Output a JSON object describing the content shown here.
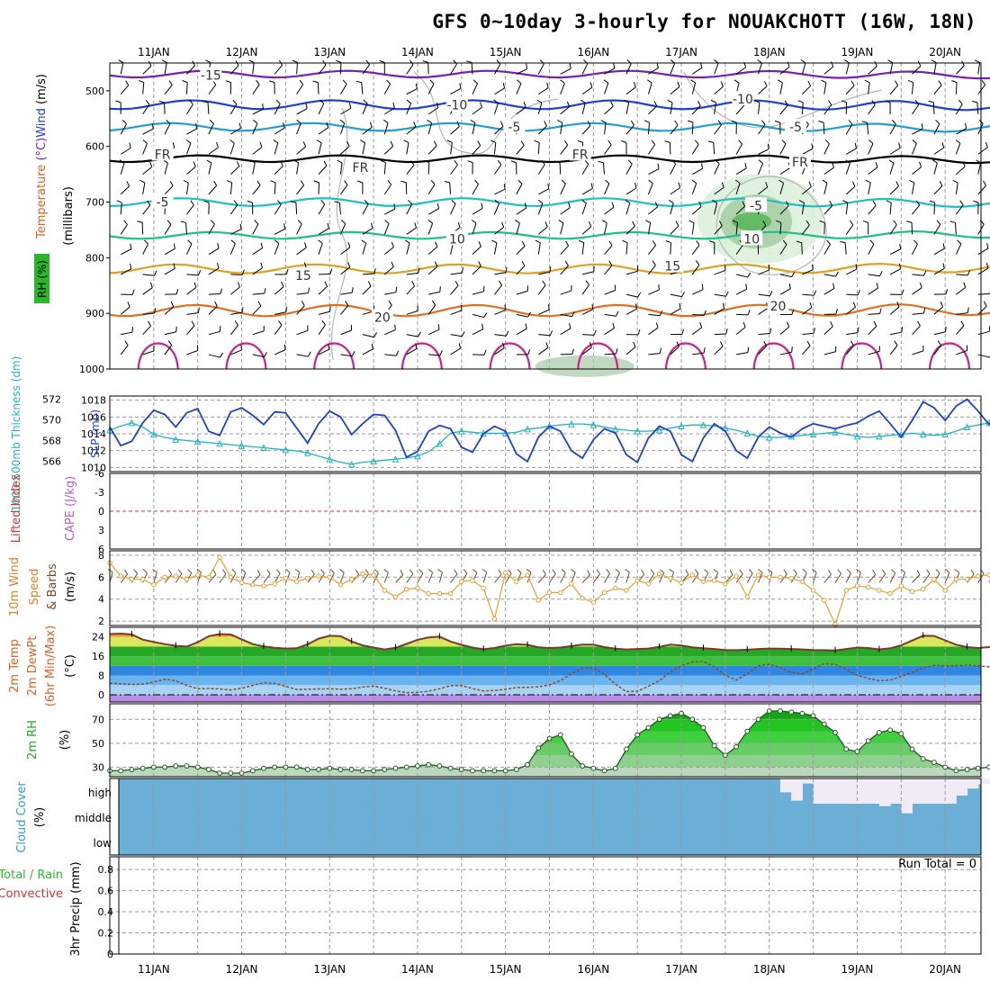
{
  "title": "GFS 0~10day 3-hourly for NOUAKCHOTT (16W, 18N)",
  "colors": {
    "frame": "#000000",
    "grid": "#9a9a9a",
    "rh_shade": "#1f7a1f",
    "slp": "#1f3fd6",
    "thickness": "#1fb5bf",
    "lifted_zero": "#e03030",
    "wind_speed": "#e8a030",
    "barb": "#7a4a2a",
    "temp_line": "#7a3a2a",
    "rh2m_fill": "#22c422",
    "cloud_bg": "#6baed6",
    "cloud_fill": "#f0ecf6"
  },
  "chart_data": [
    {
      "panel": "upper-air",
      "type": "contour",
      "ylabel_parts": [
        "Temperature",
        "(°C)",
        "Wind",
        "(m/s)"
      ],
      "ylabel2": "(millibars)",
      "rh_label": "RH (%)",
      "x_ticks": [
        "11JAN",
        "12JAN",
        "13JAN",
        "14JAN",
        "15JAN",
        "16JAN",
        "17JAN",
        "18JAN",
        "19JAN",
        "20JAN"
      ],
      "y_ticks": [
        "500",
        "600",
        "700",
        "800",
        "900",
        "1000"
      ],
      "ylim": [
        450,
        1000
      ],
      "contour_labels": [
        {
          "text": "-15",
          "day": 1.15,
          "p": 472
        },
        {
          "text": "-10",
          "day": 3.95,
          "p": 525
        },
        {
          "text": "-10",
          "day": 7.2,
          "p": 515
        },
        {
          "text": "-5",
          "day": 4.6,
          "p": 565
        },
        {
          "text": "-5",
          "day": 7.8,
          "p": 565
        },
        {
          "text": "FR",
          "day": 0.6,
          "p": 614
        },
        {
          "text": "FR",
          "day": 2.85,
          "p": 638
        },
        {
          "text": "FR",
          "day": 5.35,
          "p": 614
        },
        {
          "text": "FR",
          "day": 7.85,
          "p": 628
        },
        {
          "text": "-5",
          "day": 0.6,
          "p": 700
        },
        {
          "text": "-5",
          "day": 7.35,
          "p": 706
        },
        {
          "text": "10",
          "day": 3.95,
          "p": 766
        },
        {
          "text": "10",
          "day": 7.3,
          "p": 766
        },
        {
          "text": "15",
          "day": 2.2,
          "p": 832
        },
        {
          "text": "15",
          "day": 6.4,
          "p": 815
        },
        {
          "text": "20",
          "day": 3.1,
          "p": 907
        },
        {
          "text": "20",
          "day": 7.6,
          "p": 887
        }
      ]
    },
    {
      "panel": "slp-thickness",
      "type": "line",
      "ylabel_left": "1000-500mb Thickness (dm)",
      "ylabel_right": "SLP (mb)",
      "thickness_ticks": [
        "566",
        "568",
        "570",
        "572"
      ],
      "slp_ticks": [
        "1010",
        "1012",
        "1014",
        "1016",
        "1018"
      ],
      "slp_ylim": [
        1009.5,
        1018.5
      ],
      "thickness_ylim": [
        565,
        572.3
      ],
      "series": [
        {
          "values": [
            1014.8,
            1012.6,
            1013.1,
            1015.3,
            1016.8,
            1016.3,
            1014.8,
            1016.5,
            1017.0,
            1014.3,
            1013.8,
            1016.6,
            1017.1,
            1016.2,
            1015.1,
            1016.6,
            1016.5,
            1014.7,
            1012.9,
            1015.2,
            1016.7,
            1016.0,
            1013.9,
            1015.2,
            1016.3,
            1016.2,
            1014.4,
            1011.2,
            1011.9,
            1014.3,
            1015.0,
            1014.6,
            1012.4,
            1011.8,
            1014.0,
            1014.9,
            1014.3,
            1011.6,
            1010.7,
            1013.6,
            1014.9,
            1014.3,
            1012.0,
            1011.1,
            1013.3,
            1014.6,
            1014.1,
            1011.5,
            1010.6,
            1013.5,
            1014.9,
            1014.3,
            1011.5,
            1010.7,
            1013.5,
            1015.2,
            1014.3,
            1012.0,
            1011.1,
            1013.6,
            1014.8,
            1014.1,
            1013.6,
            1014.6,
            1015.2,
            1014.9,
            1014.6,
            1015.0,
            1015.3,
            1016.1,
            1016.7,
            1015.2,
            1013.6,
            1015.6,
            1017.8,
            1017.1,
            1015.6,
            1017.3,
            1018.1,
            1016.7,
            1015.1,
            1016.3,
            1017.4,
            1017.3,
            1016.0,
            1016.4,
            1017.5,
            1016.8,
            1015.2,
            1017.0,
            1015.9,
            1012.8,
            1012.3,
            1014.3,
            1014.5,
            1013.4,
            1012.8
          ]
        },
        {
          "values": [
            569.0,
            569.4,
            569.7,
            569.3,
            568.6,
            568.3,
            568.1,
            568.0,
            567.9,
            567.8,
            567.7,
            567.6,
            567.5,
            567.4,
            567.3,
            567.2,
            567.1,
            567.0,
            566.8,
            566.5,
            566.2,
            565.9,
            565.7,
            565.9,
            566.0,
            566.1,
            566.2,
            566.3,
            566.5,
            566.9,
            567.7,
            568.7,
            568.9,
            568.8,
            568.7,
            568.7,
            568.7,
            568.8,
            569.1,
            569.2,
            569.4,
            569.5,
            569.6,
            569.6,
            569.5,
            569.3,
            569.1,
            569.0,
            568.9,
            568.9,
            569.0,
            569.2,
            569.4,
            569.5,
            569.5,
            569.4,
            569.2,
            569.0,
            568.7,
            568.4,
            568.3,
            568.3,
            568.4,
            568.5,
            568.6,
            568.7,
            568.8,
            568.6,
            568.4,
            568.3,
            568.4,
            568.5,
            568.6,
            568.7,
            568.6,
            568.5,
            568.6,
            568.9,
            569.3,
            569.5,
            569.7,
            570.0,
            570.2,
            570.3,
            570.4,
            570.3,
            570.2,
            570.4,
            570.8,
            571.2,
            571.7,
            571.9,
            571.8,
            571.6,
            571.4,
            571.0,
            570.6
          ]
        }
      ]
    },
    {
      "panel": "stability",
      "type": "line",
      "ylabel_left": "Lifted Index",
      "ylabel_right": "CAPE (J/kg)",
      "y_ticks": [
        "-6",
        "-3",
        "0",
        "3",
        "6"
      ],
      "ylim": [
        -6,
        6
      ]
    },
    {
      "panel": "surface-wind",
      "type": "line",
      "ylabel_left": "10m Wind",
      "ylabel_mid": "Speed",
      "ylabel_right": "& Barbs",
      "unit": "(m/s)",
      "y_ticks": [
        "2",
        "4",
        "6",
        "8"
      ],
      "ylim": [
        1.6,
        8.4
      ],
      "series": [
        {
          "values": [
            7.3,
            6.1,
            5.8,
            5.8,
            5.3,
            6.0,
            6.1,
            5.8,
            6.2,
            6.0,
            7.8,
            6.0,
            5.5,
            5.3,
            5.2,
            5.4,
            5.9,
            5.6,
            5.9,
            6.1,
            6.0,
            5.3,
            5.8,
            6.3,
            6.2,
            4.8,
            4.2,
            4.9,
            5.0,
            4.5,
            4.5,
            4.5,
            5.6,
            5.7,
            5.0,
            2.2,
            6.4,
            5.6,
            6.2,
            3.9,
            4.6,
            4.6,
            5.4,
            4.1,
            3.7,
            4.6,
            5.0,
            4.8,
            5.7,
            5.4,
            6.3,
            5.9,
            5.5,
            6.2,
            5.6,
            5.7,
            5.4,
            6.1,
            4.2,
            6.2,
            6.0,
            6.0,
            5.9,
            5.6,
            4.8,
            3.9,
            1.7,
            4.8,
            5.2,
            5.1,
            4.8,
            4.5,
            5.2,
            4.7,
            4.9,
            5.8,
            4.8,
            5.8,
            5.8,
            6.1,
            6.2,
            6.2,
            6.8,
            7.4,
            7.1,
            6.2,
            5.6,
            5.8,
            5.9,
            6.2,
            6.1,
            6.0,
            6.4,
            4.0,
            3.8,
            4.6,
            4.2
          ]
        }
      ]
    },
    {
      "panel": "temperature",
      "type": "area",
      "ylabel_lines": [
        "2m Temp",
        "2m DewPt",
        "(6hr Min/Max)"
      ],
      "unit": "(°C)",
      "y_ticks": [
        "0",
        "8",
        "16",
        "24"
      ],
      "ylim": [
        -3,
        28
      ],
      "series": [
        {
          "name": "2m Temp",
          "values": [
            25.2,
            25.4,
            25.0,
            22.9,
            21.9,
            21.0,
            20.3,
            20.0,
            21.8,
            24.3,
            25.2,
            25.0,
            23.0,
            21.0,
            20.1,
            19.5,
            19.2,
            19.3,
            20.9,
            23.3,
            24.5,
            24.3,
            22.1,
            20.5,
            19.6,
            18.8,
            19.5,
            21.1,
            22.8,
            23.8,
            24.1,
            22.1,
            20.7,
            19.6,
            18.9,
            19.4,
            20.4,
            21.0,
            20.7,
            19.7,
            19.4,
            19.6,
            20.2,
            20.8,
            20.8,
            19.8,
            19.1,
            18.8,
            19.0,
            19.2,
            19.9,
            20.8,
            20.4,
            19.7,
            19.3,
            19.0,
            18.6,
            18.5,
            18.7,
            19.0,
            19.2,
            19.1,
            19.0,
            18.8,
            18.6,
            18.5,
            18.4,
            19.0,
            19.6,
            19.4,
            18.8,
            19.3,
            20.5,
            22.5,
            24.5,
            24.4,
            22.6,
            20.8,
            19.8,
            19.4,
            19.8,
            21.6,
            24.1,
            24.5,
            23.0,
            21.2,
            20.2,
            19.8,
            19.7,
            20.5,
            22.8,
            24.3,
            24.0,
            22.1,
            20.2,
            19.3,
            18.6
          ]
        },
        {
          "name": "2m DewPt",
          "values": [
            4.8,
            4.6,
            4.3,
            4.4,
            5.3,
            6.5,
            5.8,
            3.9,
            2.5,
            2.6,
            2.4,
            2.0,
            2.7,
            3.9,
            5.0,
            4.7,
            3.5,
            2.2,
            2.3,
            2.4,
            2.5,
            2.3,
            2.5,
            3.2,
            3.6,
            2.7,
            1.6,
            0.9,
            1.0,
            1.5,
            2.5,
            3.8,
            3.8,
            2.6,
            1.6,
            1.7,
            2.3,
            3.0,
            3.1,
            3.3,
            4.1,
            5.9,
            8.7,
            11.0,
            11.3,
            8.5,
            4.4,
            1.3,
            1.5,
            3.5,
            5.8,
            9.5,
            12.0,
            13.6,
            13.8,
            11.6,
            8.0,
            6.1,
            8.7,
            12.0,
            12.6,
            11.4,
            9.3,
            8.6,
            10.9,
            12.9,
            12.6,
            10.6,
            8.1,
            6.8,
            5.8,
            6.1,
            7.6,
            9.3,
            11.2,
            12.2,
            12.0,
            12.1,
            12.3,
            12.0,
            11.6,
            11.6,
            11.7,
            11.6,
            11.2,
            11.0,
            10.4,
            9.2,
            8.3,
            7.3,
            6.7,
            5.4,
            3.9,
            3.1,
            2.7,
            2.6,
            2.6
          ]
        }
      ]
    },
    {
      "panel": "relative-humidity",
      "type": "area",
      "ylabel": "2m RH",
      "unit": "(%)",
      "y_ticks": [
        "30",
        "50",
        "70"
      ],
      "ylim": [
        22,
        83
      ],
      "series": [
        {
          "name": "2m RH",
          "values": [
            27,
            27,
            28,
            29,
            30,
            30,
            31,
            31,
            30,
            28,
            25,
            25,
            25,
            27,
            29,
            30,
            30,
            30,
            28,
            28,
            29,
            28,
            28,
            27,
            27,
            28,
            29,
            30,
            31,
            32,
            31,
            29,
            28,
            27,
            27,
            27,
            27,
            28,
            32,
            46,
            54,
            57,
            41,
            31,
            29,
            27,
            29,
            45,
            57,
            63,
            70,
            73,
            75,
            70,
            63,
            48,
            40,
            47,
            60,
            70,
            77,
            77,
            76,
            75,
            73,
            66,
            59,
            45,
            43,
            52,
            59,
            61,
            58,
            45,
            37,
            34,
            30,
            27,
            28,
            29,
            30,
            31,
            30,
            30,
            28,
            27,
            28,
            30,
            31,
            30,
            27,
            26,
            27,
            28,
            30,
            30,
            30
          ]
        }
      ]
    },
    {
      "panel": "cloud-cover",
      "type": "heatmap",
      "ylabel": "Cloud Cover",
      "unit": "(%)",
      "row_labels": [
        "high",
        "middle",
        "low"
      ],
      "high_cover": [
        0,
        0,
        0,
        0,
        0,
        0,
        0,
        0,
        0,
        0,
        0,
        0,
        0,
        0,
        0,
        0,
        0,
        0,
        0,
        0,
        0,
        0,
        0,
        0,
        0,
        0,
        0,
        0,
        0,
        0,
        0,
        0,
        0,
        0,
        0,
        0,
        0,
        0,
        0,
        0,
        0,
        0,
        0,
        0,
        0,
        0,
        0,
        0,
        0,
        0,
        0,
        0,
        0,
        0,
        0,
        0,
        0,
        0,
        0,
        0,
        0,
        0.55,
        0.88,
        0.2,
        1,
        1,
        1,
        1,
        1,
        1,
        1,
        1,
        1,
        1,
        1,
        1,
        1,
        0.68,
        0.4,
        0.23,
        0.12,
        0.1,
        0.08,
        0,
        0,
        0,
        0,
        0,
        0,
        0,
        0,
        0,
        0,
        0,
        0,
        0,
        0
      ],
      "middle_cover": [
        0,
        0,
        0,
        0,
        0,
        0,
        0,
        0,
        0,
        0,
        0,
        0,
        0,
        0,
        0,
        0,
        0,
        0,
        0,
        0,
        0,
        0,
        0,
        0,
        0,
        0,
        0,
        0,
        0,
        0,
        0,
        0,
        0,
        0,
        0,
        0,
        0,
        0,
        0,
        0,
        0,
        0,
        0,
        0,
        0,
        0,
        0,
        0,
        0,
        0,
        0,
        0,
        0,
        0,
        0,
        0,
        0,
        0,
        0,
        0,
        0,
        0,
        0,
        0,
        0,
        0,
        0,
        0,
        0,
        0,
        0.1,
        0,
        0.38,
        0,
        0,
        0,
        0,
        0,
        0,
        0,
        0,
        0,
        0,
        0,
        0,
        0,
        0,
        0,
        0,
        0,
        0,
        0,
        0,
        0,
        0,
        0,
        0
      ],
      "low_cover": [
        0,
        0,
        0,
        0,
        0,
        0,
        0,
        0,
        0,
        0,
        0,
        0,
        0,
        0,
        0,
        0,
        0,
        0,
        0,
        0,
        0,
        0,
        0,
        0,
        0,
        0,
        0,
        0,
        0,
        0,
        0,
        0,
        0,
        0,
        0,
        0,
        0,
        0,
        0,
        0,
        0,
        0,
        0,
        0,
        0,
        0,
        0,
        0,
        0,
        0,
        0,
        0,
        0,
        0,
        0,
        0,
        0,
        0,
        0,
        0,
        0,
        0,
        0,
        0,
        0,
        0,
        0,
        0,
        0,
        0,
        0,
        0,
        0,
        0,
        0,
        0,
        0,
        0,
        0,
        0,
        0,
        0,
        0,
        0,
        0,
        0,
        0,
        0,
        0,
        0,
        0,
        0,
        0,
        0,
        0,
        0,
        0
      ]
    },
    {
      "panel": "precipitation",
      "type": "bar",
      "ylabel_left": "Total / Rain",
      "ylabel_left2": "Convective",
      "ylabel": "3hr Precip (mm)",
      "y_ticks": [
        "0",
        "0.2",
        "0.4",
        "0.6",
        "0.8"
      ],
      "ylim": [
        0,
        0.92
      ],
      "run_total": "Run Total = 0",
      "values": []
    }
  ]
}
